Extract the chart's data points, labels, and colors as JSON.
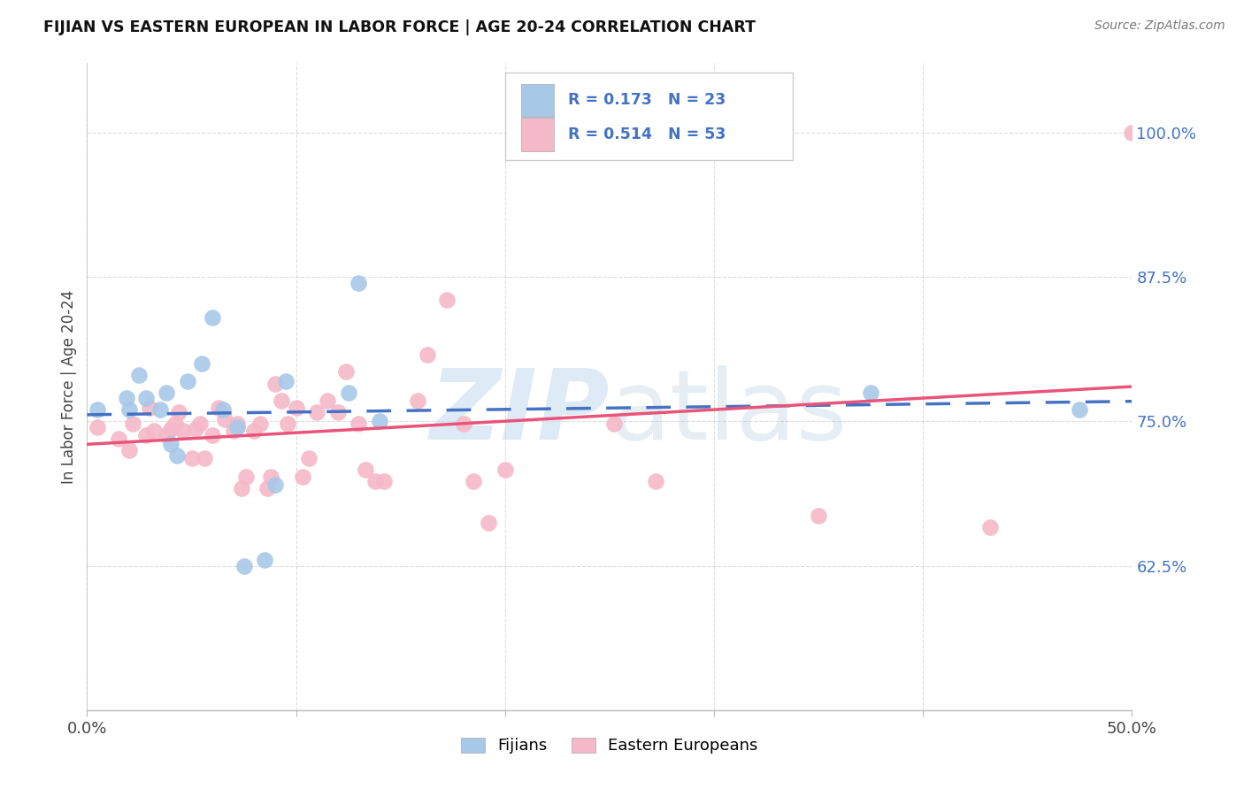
{
  "title": "FIJIAN VS EASTERN EUROPEAN IN LABOR FORCE | AGE 20-24 CORRELATION CHART",
  "source": "Source: ZipAtlas.com",
  "ylabel": "In Labor Force | Age 20-24",
  "watermark_zip": "ZIP",
  "watermark_atlas": "atlas",
  "fijians_R": 0.173,
  "fijians_N": 23,
  "easterns_R": 0.514,
  "easterns_N": 53,
  "fijian_color": "#a8c8e8",
  "eastern_color": "#f5b8c8",
  "fijian_line_color": "#4472c4",
  "eastern_line_color": "#e8547a",
  "legend_text_color": "#4472c4",
  "fijians_x": [
    0.005,
    0.019,
    0.02,
    0.025,
    0.028,
    0.035,
    0.038,
    0.04,
    0.043,
    0.048,
    0.055,
    0.06,
    0.065,
    0.072,
    0.075,
    0.085,
    0.09,
    0.095,
    0.125,
    0.13,
    0.14,
    0.375,
    0.475
  ],
  "fijians_y": [
    0.76,
    0.77,
    0.76,
    0.79,
    0.77,
    0.76,
    0.775,
    0.73,
    0.72,
    0.785,
    0.8,
    0.84,
    0.76,
    0.745,
    0.625,
    0.63,
    0.695,
    0.785,
    0.775,
    0.87,
    0.75,
    0.775,
    0.76
  ],
  "easterns_x": [
    0.005,
    0.015,
    0.02,
    0.022,
    0.028,
    0.03,
    0.032,
    0.038,
    0.04,
    0.042,
    0.044,
    0.046,
    0.05,
    0.052,
    0.054,
    0.056,
    0.06,
    0.063,
    0.066,
    0.07,
    0.072,
    0.074,
    0.076,
    0.08,
    0.083,
    0.086,
    0.088,
    0.09,
    0.093,
    0.096,
    0.1,
    0.103,
    0.106,
    0.11,
    0.115,
    0.12,
    0.124,
    0.13,
    0.133,
    0.138,
    0.142,
    0.158,
    0.163,
    0.172,
    0.18,
    0.185,
    0.192,
    0.2,
    0.252,
    0.272,
    0.35,
    0.432,
    0.5
  ],
  "easterns_y": [
    0.745,
    0.735,
    0.725,
    0.748,
    0.738,
    0.762,
    0.742,
    0.738,
    0.743,
    0.748,
    0.758,
    0.742,
    0.718,
    0.743,
    0.748,
    0.718,
    0.738,
    0.762,
    0.752,
    0.742,
    0.748,
    0.692,
    0.702,
    0.742,
    0.748,
    0.692,
    0.702,
    0.782,
    0.768,
    0.748,
    0.762,
    0.702,
    0.718,
    0.758,
    0.768,
    0.758,
    0.793,
    0.748,
    0.708,
    0.698,
    0.698,
    0.768,
    0.808,
    0.855,
    0.748,
    0.698,
    0.662,
    0.708,
    0.748,
    0.698,
    0.668,
    0.658,
    1.0
  ],
  "xlim": [
    0.0,
    0.5
  ],
  "ylim": [
    0.5,
    1.06
  ],
  "yticks": [
    0.625,
    0.75,
    0.875,
    1.0
  ],
  "ytick_labels": [
    "62.5%",
    "75.0%",
    "87.5%",
    "100.0%"
  ],
  "xticks": [
    0.0,
    0.1,
    0.2,
    0.3,
    0.4,
    0.5
  ],
  "xtick_labels": [
    "0.0%",
    "",
    "",
    "",
    "",
    "50.0%"
  ],
  "grid_color": "#dddddd",
  "bottom_legend_labels": [
    "Fijians",
    "Eastern Europeans"
  ]
}
